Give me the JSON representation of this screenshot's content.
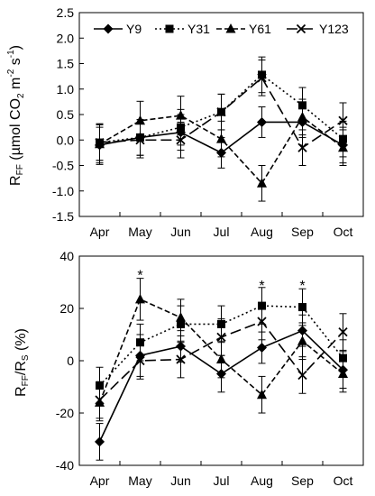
{
  "figure": {
    "legend_entries": [
      "Y9",
      "Y31",
      "Y61",
      "Y123"
    ]
  },
  "chart_data": [
    {
      "type": "line",
      "panel": "top",
      "ylabel_main": "R",
      "ylabel_sub": "FF",
      "ylabel_rest": " (µmol CO",
      "ylabel_sub2": "2",
      "ylabel_rest2": " m",
      "ylabel_sup1": "-2",
      "ylabel_rest3": " s",
      "ylabel_sup2": "-1",
      "ylabel_close": ")",
      "categories": [
        "Apr",
        "May",
        "Jun",
        "Jul",
        "Aug",
        "Sep",
        "Oct"
      ],
      "ylim": [
        -1.5,
        2.5
      ],
      "yticks": [
        -1.5,
        -1.0,
        -0.5,
        0.0,
        0.5,
        1.0,
        1.5,
        2.0,
        2.5
      ],
      "ytick_labels": [
        "-1.5",
        "-1.0",
        "-0.5",
        "0.0",
        "0.5",
        "1.0",
        "1.5",
        "2.0",
        "2.5"
      ],
      "legend_position": "top",
      "series": [
        {
          "name": "Y9",
          "marker": "diamond",
          "dash": "solid",
          "values": [
            -0.1,
            0.05,
            0.15,
            -0.25,
            0.35,
            0.35,
            -0.1
          ],
          "errors": [
            0.35,
            0.35,
            0.35,
            0.3,
            0.3,
            0.3,
            0.35
          ]
        },
        {
          "name": "Y31",
          "marker": "square",
          "dash": "dotted",
          "values": [
            -0.05,
            0.05,
            0.25,
            0.55,
            1.28,
            0.68,
            0.02
          ],
          "errors": [
            0.35,
            0.35,
            0.35,
            0.35,
            0.35,
            0.35,
            0.35
          ]
        },
        {
          "name": "Y61",
          "marker": "triangle",
          "dash": "dashed",
          "values": [
            -0.08,
            0.38,
            0.48,
            0.02,
            -0.85,
            0.45,
            -0.15
          ],
          "errors": [
            0.4,
            0.38,
            0.38,
            0.35,
            0.35,
            0.35,
            0.35
          ]
        },
        {
          "name": "Y123",
          "marker": "x",
          "dash": "longdash",
          "values": [
            -0.05,
            0.0,
            0.0,
            0.55,
            1.22,
            -0.15,
            0.38
          ],
          "errors": [
            0.35,
            0.35,
            0.35,
            0.35,
            0.35,
            0.35,
            0.35
          ]
        }
      ]
    },
    {
      "type": "line",
      "panel": "bottom",
      "ylabel_main": "R",
      "ylabel_sub": "FF",
      "ylabel_mid": "/R",
      "ylabel_sub2": "S",
      "ylabel_rest": " (%)",
      "categories": [
        "Apr",
        "May",
        "Jun",
        "Jul",
        "Aug",
        "Sep",
        "Oct"
      ],
      "ylim": [
        -40,
        40
      ],
      "yticks": [
        -40,
        -20,
        0,
        20,
        40
      ],
      "ytick_labels": [
        "-40",
        "-20",
        "0",
        "20",
        "40"
      ],
      "annotations": [
        {
          "text": "*",
          "category": "May",
          "y": 33
        },
        {
          "text": "*",
          "category": "Aug",
          "y": 29
        },
        {
          "text": "*",
          "category": "Sep",
          "y": 29
        }
      ],
      "series": [
        {
          "name": "Y9",
          "marker": "diamond",
          "dash": "solid",
          "values": [
            -31,
            2,
            5.5,
            -5,
            5,
            11.5,
            -3.5
          ],
          "errors": [
            7,
            8,
            6,
            7,
            6,
            6,
            7
          ]
        },
        {
          "name": "Y31",
          "marker": "square",
          "dash": "dotted",
          "values": [
            -9.5,
            7,
            14,
            14,
            21,
            20.5,
            1
          ],
          "errors": [
            7,
            7,
            7,
            7,
            7,
            7,
            7
          ]
        },
        {
          "name": "Y61",
          "marker": "triangle",
          "dash": "dashed",
          "values": [
            -16,
            23.5,
            16.5,
            0.5,
            -13,
            7.5,
            -5
          ],
          "errors": [
            7,
            8,
            7,
            7,
            7,
            7,
            7
          ]
        },
        {
          "name": "Y123",
          "marker": "x",
          "dash": "longdash",
          "values": [
            -15,
            0,
            0.5,
            9,
            15,
            -5.5,
            11
          ],
          "errors": [
            7,
            7,
            7,
            7,
            7,
            7,
            7
          ]
        }
      ]
    }
  ]
}
